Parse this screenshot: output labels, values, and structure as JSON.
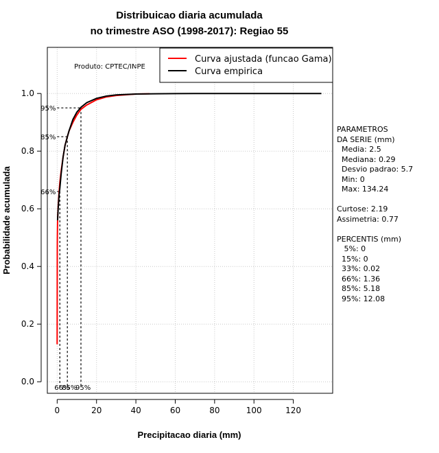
{
  "chart_data": {
    "type": "line",
    "title": "Distribuicao diaria acumulada",
    "subtitle": "no trimestre ASO (1998-2017): Regiao 55",
    "xlabel": "Precipitacao diaria (mm)",
    "ylabel": "Probabilidade acumulada",
    "xlim": [
      -5,
      140
    ],
    "ylim": [
      -0.04,
      1.16
    ],
    "x_ticks": [
      0,
      20,
      40,
      60,
      80,
      100,
      120
    ],
    "y_ticks": [
      0.0,
      0.2,
      0.4,
      0.6,
      0.8,
      1.0
    ],
    "y_tick_labels": [
      "0.0",
      "0.2",
      "0.4",
      "0.6",
      "0.8",
      "1.0"
    ],
    "grid": true,
    "legend": {
      "position": "top-right"
    },
    "product_note": "Produto: CPTEC/INPE",
    "series": [
      {
        "name": "Curva ajustada (funcao Gama)",
        "color": "#ff0000",
        "x": [
          0,
          0.05,
          0.1,
          0.2,
          0.3,
          0.5,
          0.8,
          1,
          1.36,
          2,
          3,
          4,
          5.18,
          6,
          8,
          10,
          12.08,
          15,
          20,
          25,
          30,
          40,
          47
        ],
        "y": [
          0.13,
          0.45,
          0.5,
          0.55,
          0.58,
          0.61,
          0.64,
          0.66,
          0.69,
          0.73,
          0.78,
          0.82,
          0.85,
          0.87,
          0.9,
          0.925,
          0.945,
          0.96,
          0.978,
          0.988,
          0.993,
          0.998,
          0.999
        ]
      },
      {
        "name": "Curva empirica",
        "color": "#000000",
        "x": [
          0.2,
          0.5,
          0.8,
          1,
          1.36,
          2,
          3,
          4,
          5.18,
          6,
          8,
          10,
          12.08,
          15,
          20,
          25,
          30,
          40,
          50,
          70,
          100,
          134.24
        ],
        "y": [
          0.56,
          0.6,
          0.63,
          0.65,
          0.67,
          0.72,
          0.78,
          0.82,
          0.85,
          0.87,
          0.91,
          0.935,
          0.952,
          0.968,
          0.983,
          0.991,
          0.995,
          0.998,
          0.999,
          1.0,
          1.0,
          1.0
        ]
      }
    ],
    "percentile_markers": [
      {
        "label": "66%",
        "p": 0.66,
        "value": 1.36
      },
      {
        "label": "85%",
        "p": 0.85,
        "value": 5.18
      },
      {
        "label": "95%",
        "p": 0.95,
        "value": 12.08
      }
    ]
  },
  "stats_panel": {
    "lines": [
      "PARAMETROS",
      "DA SERIE (mm)",
      "  Media: 2.5",
      "  Mediana: 0.29",
      "  Desvio padrao: 5.7",
      "  Min: 0",
      "  Max: 134.24",
      "",
      "Curtose: 2.19",
      "Assimetria: 0.77",
      "",
      "PERCENTIS (mm)",
      "   5%: 0",
      "  15%: 0",
      "  33%: 0.02",
      "  66%: 1.36",
      "  85%: 5.18",
      "  95%: 12.08"
    ]
  }
}
